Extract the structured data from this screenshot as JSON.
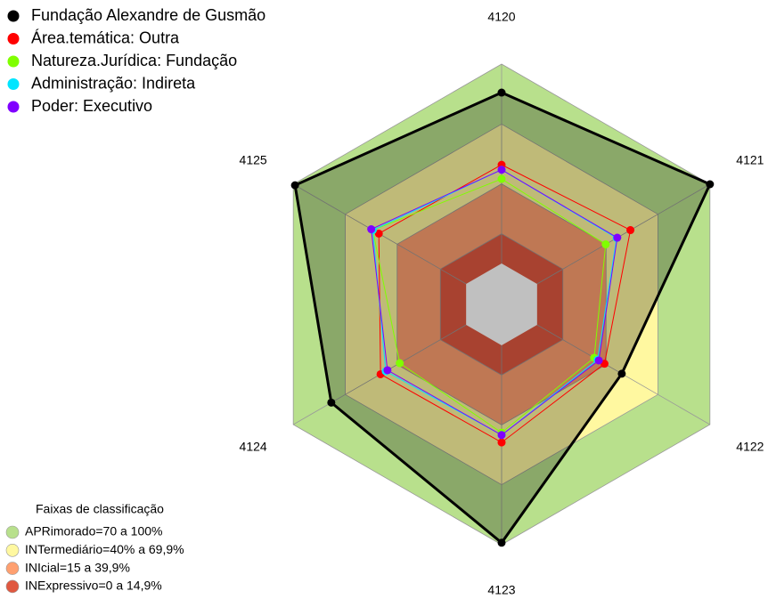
{
  "chart_data": {
    "type": "radar",
    "categories": [
      "4120",
      "4121",
      "4122",
      "4123",
      "4124",
      "4125"
    ],
    "series": [
      {
        "name": "Fundação Alexandre de Gusmão",
        "color": "#000000",
        "values": [
          85.7,
          100,
          49,
          99,
          78,
          99
        ]
      },
      {
        "name": "Área.temática: Outra",
        "color": "#ff0000",
        "values": [
          49.5,
          54,
          39,
          48.7,
          49.5,
          50.5
        ]
      },
      {
        "name": "Natureza.Jurídica: Fundação",
        "color": "#80ff00",
        "values": [
          42.4,
          39.7,
          33,
          43.8,
          38.4,
          54
        ]
      },
      {
        "name": "Administração: Indireta",
        "color": "#00e5ff",
        "values": [
          47,
          46,
          35,
          45,
          46.5,
          54
        ]
      },
      {
        "name": "Poder: Executivo",
        "color": "#8000ff",
        "values": [
          47,
          46.4,
          35.7,
          45,
          45.5,
          54.9
        ]
      }
    ],
    "bands_title": "Faixas de classificação",
    "bands": [
      {
        "label": "APRimorado=70 a 100%",
        "color": "#b8e08c",
        "range": [
          70,
          100
        ]
      },
      {
        "label": "INTermediário=40% a 69,9%",
        "color": "#fff8a0",
        "range": [
          40,
          69.9
        ]
      },
      {
        "label": "INIcial=15 a 39,9%",
        "color": "#ffa070",
        "range": [
          15,
          39.9
        ]
      },
      {
        "label": "INExpressivo=0 a 14,9%",
        "color": "#e05840",
        "range": [
          0,
          14.9
        ]
      }
    ],
    "rlim": [
      0,
      100
    ]
  }
}
